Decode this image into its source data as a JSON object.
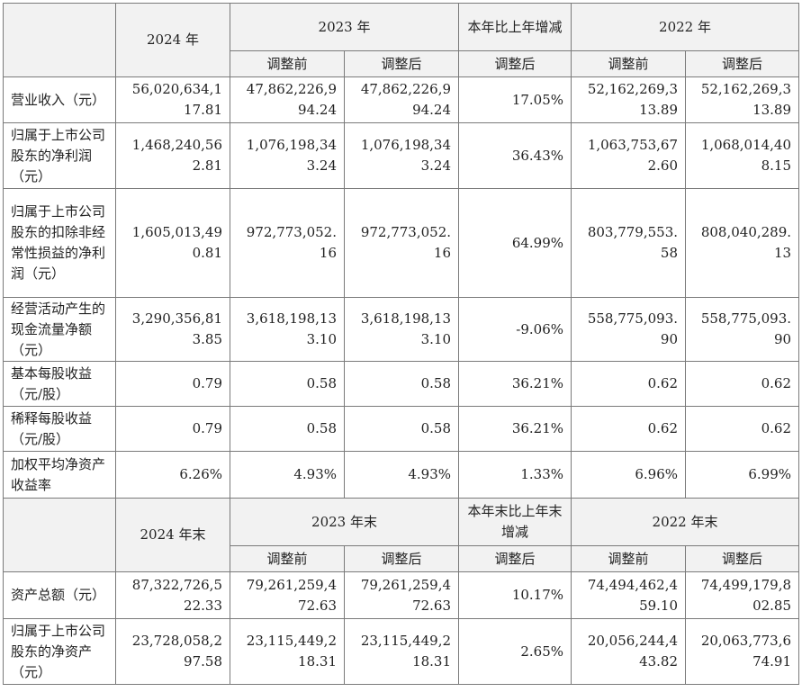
{
  "header_income": {
    "year_2024": "2024 年",
    "year_2023": "2023 年",
    "change": "本年比上年增减",
    "year_2022": "2022 年",
    "before_adj": "调整前",
    "after_adj": "调整后"
  },
  "income_rows": [
    {
      "label": "营业收入（元）",
      "v2024": [
        "56,020,634,1",
        "17.81"
      ],
      "v2023_before": [
        "47,862,226,9",
        "94.24"
      ],
      "v2023_after": [
        "47,862,226,9",
        "94.24"
      ],
      "change": "17.05%",
      "v2022_before": [
        "52,162,269,3",
        "13.89"
      ],
      "v2022_after": [
        "52,162,269,3",
        "13.89"
      ]
    },
    {
      "label": "归属于上市公司股东的净利润（元）",
      "v2024": [
        "1,468,240,56",
        "2.81"
      ],
      "v2023_before": [
        "1,076,198,34",
        "3.24"
      ],
      "v2023_after": [
        "1,076,198,34",
        "3.24"
      ],
      "change": "36.43%",
      "v2022_before": [
        "1,063,753,67",
        "2.60"
      ],
      "v2022_after": [
        "1,068,014,40",
        "8.15"
      ]
    },
    {
      "label": "归属于上市公司股东的扣除非经常性损益的净利润（元）",
      "v2024": [
        "1,605,013,49",
        "0.81"
      ],
      "v2023_before": [
        "972,773,052.",
        "16"
      ],
      "v2023_after": [
        "972,773,052.",
        "16"
      ],
      "change": "64.99%",
      "v2022_before": [
        "803,779,553.",
        "58"
      ],
      "v2022_after": [
        "808,040,289.",
        "13"
      ]
    },
    {
      "label": "经营活动产生的现金流量净额（元）",
      "v2024": [
        "3,290,356,81",
        "3.85"
      ],
      "v2023_before": [
        "3,618,198,13",
        "3.10"
      ],
      "v2023_after": [
        "3,618,198,13",
        "3.10"
      ],
      "change": "-9.06%",
      "v2022_before": [
        "558,775,093.",
        "90"
      ],
      "v2022_after": [
        "558,775,093.",
        "90"
      ]
    },
    {
      "label": "基本每股收益（元/股）",
      "v2024": [
        "0.79"
      ],
      "v2023_before": [
        "0.58"
      ],
      "v2023_after": [
        "0.58"
      ],
      "change": "36.21%",
      "v2022_before": [
        "0.62"
      ],
      "v2022_after": [
        "0.62"
      ]
    },
    {
      "label": "稀释每股收益（元/股）",
      "v2024": [
        "0.79"
      ],
      "v2023_before": [
        "0.58"
      ],
      "v2023_after": [
        "0.58"
      ],
      "change": "36.21%",
      "v2022_before": [
        "0.62"
      ],
      "v2022_after": [
        "0.62"
      ]
    },
    {
      "label": "加权平均净资产收益率",
      "v2024": [
        "6.26%"
      ],
      "v2023_before": [
        "4.93%"
      ],
      "v2023_after": [
        "4.93%"
      ],
      "change": "1.33%",
      "v2022_before": [
        "6.96%"
      ],
      "v2022_after": [
        "6.99%"
      ]
    }
  ],
  "header_balance": {
    "year_2024": "2024 年末",
    "year_2023": "2023 年末",
    "change": "本年末比上年末增减",
    "year_2022": "2022 年末",
    "before_adj": "调整前",
    "after_adj": "调整后",
    "change_sub": "调整后"
  },
  "balance_rows": [
    {
      "label": "资产总额（元）",
      "v2024": [
        "87,322,726,5",
        "22.33"
      ],
      "v2023_before": [
        "79,261,259,4",
        "72.63"
      ],
      "v2023_after": [
        "79,261,259,4",
        "72.63"
      ],
      "change": "10.17%",
      "v2022_before": [
        "74,494,462,4",
        "59.10"
      ],
      "v2022_after": [
        "74,499,179,8",
        "02.85"
      ]
    },
    {
      "label": "归属于上市公司股东的净资产（元）",
      "v2024": [
        "23,728,058,2",
        "97.58"
      ],
      "v2023_before": [
        "23,115,449,2",
        "18.31"
      ],
      "v2023_after": [
        "23,115,449,2",
        "18.31"
      ],
      "change": "2.65%",
      "v2022_before": [
        "20,056,244,4",
        "43.82"
      ],
      "v2022_after": [
        "20,063,773,6",
        "74.91"
      ]
    }
  ]
}
